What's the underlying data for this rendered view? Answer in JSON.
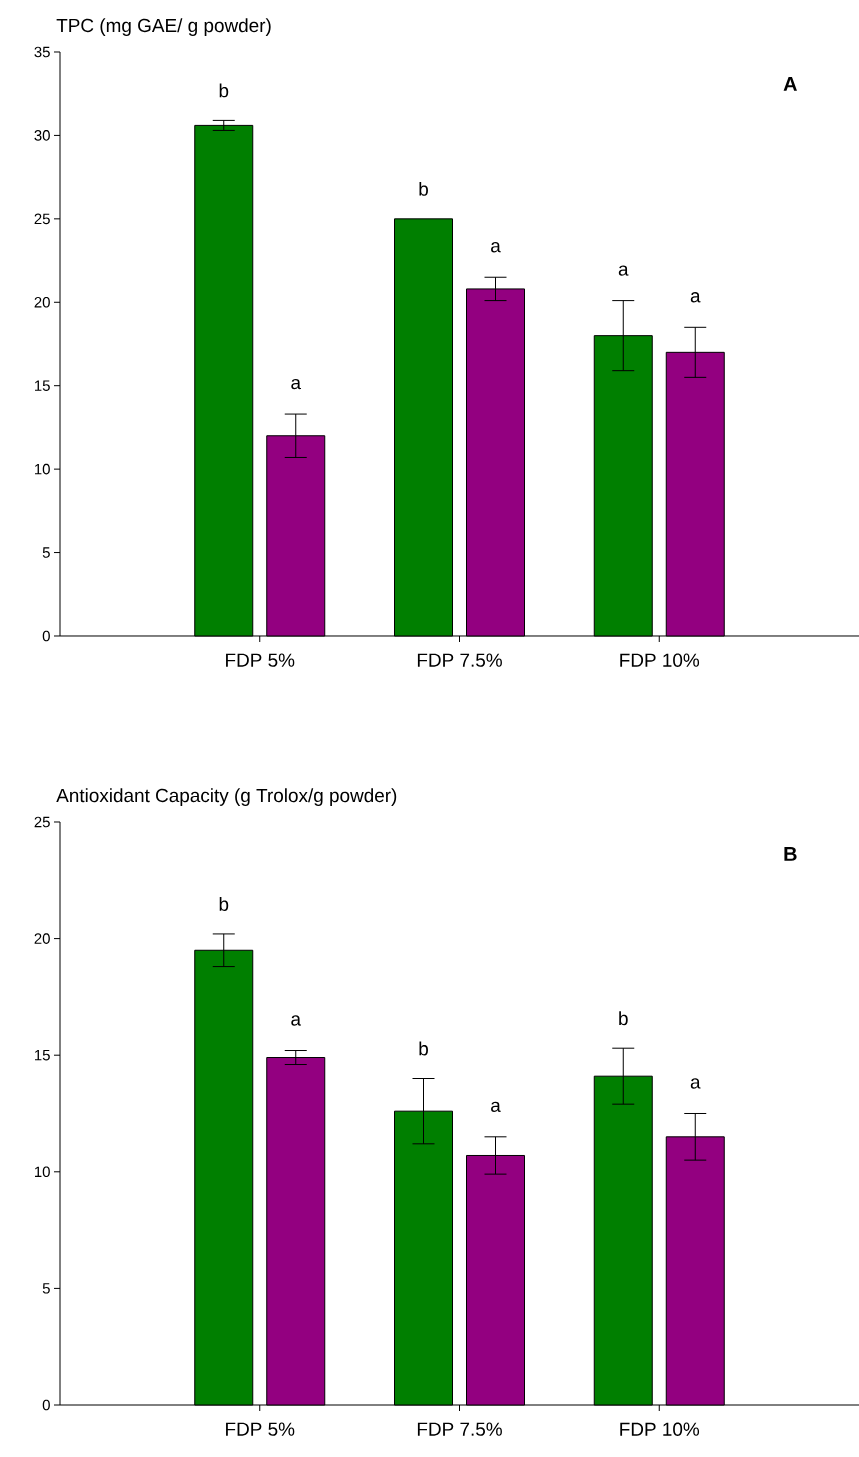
{
  "chart_data": [
    {
      "type": "bar",
      "title": "A",
      "ylabel": "TPC (mg GAE/ g powder)",
      "categories": [
        "FDP 5%",
        "FDP 7.5%",
        "FDP 10%"
      ],
      "series": [
        {
          "color": "#007f00",
          "values": [
            30.6,
            25.0,
            18.0
          ],
          "errors": [
            0.3,
            null,
            2.1
          ]
        },
        {
          "color": "#930080",
          "values": [
            12.0,
            20.8,
            17.0
          ],
          "errors": [
            1.3,
            0.7,
            1.5
          ]
        }
      ],
      "ylim": [
        0,
        35
      ],
      "yticks": [
        0,
        5,
        10,
        15,
        20,
        25,
        30,
        35
      ],
      "annotations": [
        "b",
        "a",
        "b",
        "a",
        "a",
        "a"
      ]
    },
    {
      "type": "bar",
      "title": "B",
      "ylabel": "Antioxidant Capacity (g Trolox/g powder)",
      "categories": [
        "FDP 5%",
        "FDP 7.5%",
        "FDP 10%"
      ],
      "series": [
        {
          "color": "#007f00",
          "values": [
            19.5,
            12.6,
            14.1
          ],
          "errors": [
            0.7,
            1.4,
            1.2
          ]
        },
        {
          "color": "#930080",
          "values": [
            14.9,
            10.7,
            11.5
          ],
          "errors": [
            0.3,
            0.8,
            1.0
          ]
        }
      ],
      "ylim": [
        0,
        25
      ],
      "yticks": [
        0,
        5,
        10,
        15,
        20,
        25
      ],
      "annotations": [
        "b",
        "a",
        "b",
        "a",
        "b",
        "a"
      ]
    }
  ]
}
